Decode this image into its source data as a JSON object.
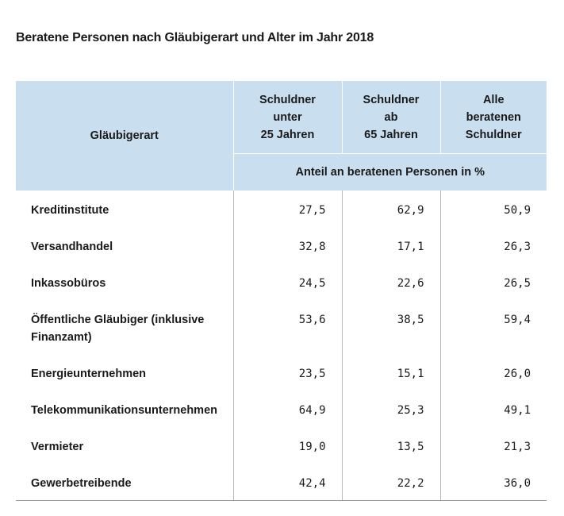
{
  "title": "Beratene Personen nach Gläubigerart und Alter im Jahr 2018",
  "header": {
    "row_label": "Gläubigerart",
    "columns": [
      [
        "Schuldner",
        "unter",
        "25 Jahren"
      ],
      [
        "Schuldner",
        "ab",
        "65 Jahren"
      ],
      [
        "Alle",
        "beratenen",
        "Schuldner"
      ]
    ],
    "unit": "Anteil an beratenen Personen in %"
  },
  "rows": [
    {
      "label": "Kreditinstitute",
      "values": [
        "27,5",
        "62,9",
        "50,9"
      ]
    },
    {
      "label": "Versandhandel",
      "values": [
        "32,8",
        "17,1",
        "26,3"
      ]
    },
    {
      "label": "Inkassobüros",
      "values": [
        "24,5",
        "22,6",
        "26,5"
      ]
    },
    {
      "label": "Öffentliche Gläubiger (inklusive Finanzamt)",
      "values": [
        "53,6",
        "38,5",
        "59,4"
      ]
    },
    {
      "label": "Energieunternehmen",
      "values": [
        "23,5",
        "15,1",
        "26,0"
      ]
    },
    {
      "label": "Telekommunikationsunternehmen",
      "values": [
        "64,9",
        "25,3",
        "49,1"
      ]
    },
    {
      "label": "Vermieter",
      "values": [
        "19,0",
        "13,5",
        "21,3"
      ]
    },
    {
      "label": "Gewerbetreibende",
      "values": [
        "42,4",
        "22,2",
        "36,0"
      ]
    }
  ]
}
